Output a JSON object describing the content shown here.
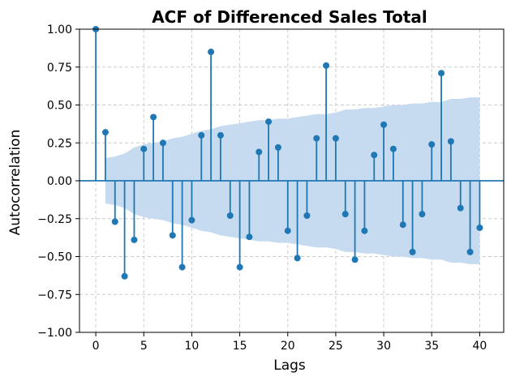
{
  "chart_data": {
    "type": "stem",
    "title": "ACF of Differenced Sales Total",
    "xlabel": "Lags",
    "ylabel": "Autocorrelation",
    "xlim": [
      -1.7,
      42.5
    ],
    "ylim": [
      -1.0,
      1.0
    ],
    "xticks": [
      0,
      5,
      10,
      15,
      20,
      25,
      30,
      35,
      40
    ],
    "yticks": [
      -1.0,
      -0.75,
      -0.5,
      -0.25,
      0.0,
      0.25,
      0.5,
      0.75,
      1.0
    ],
    "xtick_labels": [
      "0",
      "5",
      "10",
      "15",
      "20",
      "25",
      "30",
      "35",
      "40"
    ],
    "ytick_labels": [
      "−1.00",
      "−0.75",
      "−0.50",
      "−0.25",
      "0.00",
      "0.25",
      "0.50",
      "0.75",
      "1.00"
    ],
    "grid": true,
    "series": [
      {
        "lags": [
          0,
          1,
          2,
          3,
          4,
          5,
          6,
          7,
          8,
          9,
          10,
          11,
          12,
          13,
          14,
          15,
          16,
          17,
          18,
          19,
          20,
          21,
          22,
          23,
          24,
          25,
          26,
          27,
          28,
          29,
          30,
          31,
          32,
          33,
          34,
          35,
          36,
          37,
          38,
          39,
          40
        ],
        "values": [
          1.0,
          0.32,
          -0.27,
          -0.63,
          -0.39,
          0.21,
          0.42,
          0.25,
          -0.36,
          -0.57,
          -0.26,
          0.3,
          0.85,
          0.3,
          -0.23,
          -0.57,
          -0.37,
          0.19,
          0.39,
          0.22,
          -0.33,
          -0.51,
          -0.23,
          0.28,
          0.76,
          0.28,
          -0.22,
          -0.52,
          -0.33,
          0.17,
          0.37,
          0.21,
          -0.29,
          -0.47,
          -0.22,
          0.24,
          0.71,
          0.26,
          -0.18,
          -0.47,
          -0.31
        ]
      }
    ],
    "confidence_band": {
      "lags": [
        1,
        2,
        3,
        4,
        5,
        6,
        7,
        8,
        9,
        10,
        11,
        12,
        13,
        14,
        15,
        16,
        17,
        18,
        19,
        20,
        21,
        22,
        23,
        24,
        25,
        26,
        27,
        28,
        29,
        30,
        31,
        32,
        33,
        34,
        35,
        36,
        37,
        38,
        39,
        40
      ],
      "upper": [
        0.15,
        0.16,
        0.18,
        0.22,
        0.24,
        0.25,
        0.26,
        0.28,
        0.29,
        0.31,
        0.33,
        0.34,
        0.36,
        0.37,
        0.38,
        0.39,
        0.4,
        0.4,
        0.41,
        0.41,
        0.42,
        0.43,
        0.44,
        0.44,
        0.45,
        0.47,
        0.47,
        0.48,
        0.48,
        0.49,
        0.5,
        0.5,
        0.51,
        0.51,
        0.52,
        0.52,
        0.54,
        0.54,
        0.55,
        0.55
      ]
    },
    "colors": {
      "stem": "#1f77b4",
      "band": "#c6dbef",
      "grid": "#cccccc"
    }
  }
}
